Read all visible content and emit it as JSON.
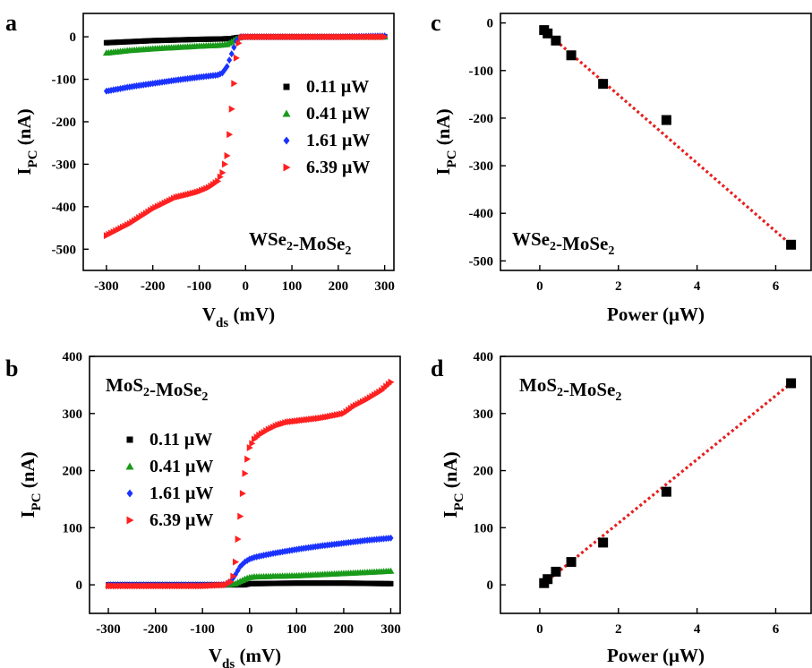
{
  "figure": {
    "colors": {
      "black": "#000000",
      "green": "#1a9a1a",
      "blue": "#1a33ff",
      "red": "#ff2020",
      "fit_line": "#e62020"
    }
  },
  "chart_data": [
    {
      "panel": "a",
      "type": "scatter",
      "annotation": "WSe₂-MoSe₂",
      "xlabel": "V_ds (mV)",
      "ylabel": "I_PC (nA)",
      "xlim": [
        -350,
        320
      ],
      "ylim": [
        -550,
        55
      ],
      "xticks": [
        -300,
        -200,
        -100,
        0,
        100,
        200,
        300
      ],
      "yticks": [
        0,
        -100,
        -200,
        -300,
        -400,
        -500
      ],
      "legend_position": "center-right",
      "series": [
        {
          "name": "0.11 μW",
          "marker": "square",
          "color": "#000000",
          "x": [
            -300,
            -200,
            -100,
            -50,
            -30,
            -20,
            0,
            100,
            200,
            300
          ],
          "y": [
            -14,
            -9,
            -6,
            -5,
            -4,
            -2,
            0,
            0,
            0,
            0
          ]
        },
        {
          "name": "0.41 μW",
          "marker": "triangle-up",
          "color": "#1a9a1a",
          "x": [
            -300,
            -250,
            -200,
            -150,
            -100,
            -60,
            -40,
            -30,
            -20,
            -10,
            0,
            100,
            200,
            300
          ],
          "y": [
            -38,
            -32,
            -28,
            -25,
            -22,
            -20,
            -18,
            -12,
            -5,
            0,
            0,
            0,
            0,
            0
          ]
        },
        {
          "name": "1.61 μW",
          "marker": "diamond",
          "color": "#1a33ff",
          "x": [
            -300,
            -250,
            -200,
            -150,
            -100,
            -60,
            -50,
            -40,
            -30,
            -20,
            -10,
            0,
            100,
            200,
            300
          ],
          "y": [
            -128,
            -118,
            -110,
            -102,
            -95,
            -90,
            -85,
            -70,
            -40,
            -10,
            0,
            0,
            0,
            0,
            2
          ]
        },
        {
          "name": "6.39 μW",
          "marker": "triangle-right",
          "color": "#ff2020",
          "x": [
            -300,
            -250,
            -200,
            -150,
            -120,
            -100,
            -80,
            -60,
            -50,
            -40,
            -35,
            -30,
            -25,
            -20,
            -15,
            -10,
            -5,
            0,
            100,
            200,
            300
          ],
          "y": [
            -468,
            -440,
            -405,
            -378,
            -370,
            -364,
            -355,
            -340,
            -320,
            -280,
            -230,
            -170,
            -110,
            -50,
            -15,
            -3,
            0,
            0,
            0,
            0,
            0
          ]
        }
      ]
    },
    {
      "panel": "b",
      "type": "scatter",
      "annotation": "MoS₂-MoSe₂",
      "xlabel": "V_ds (mV)",
      "ylabel": "I_PC (nA)",
      "xlim": [
        -340,
        320
      ],
      "ylim": [
        -50,
        400
      ],
      "xticks": [
        -300,
        -200,
        -100,
        0,
        100,
        200,
        300
      ],
      "yticks": [
        0,
        100,
        200,
        300,
        400
      ],
      "legend_position": "center-left",
      "series": [
        {
          "name": "0.11 μW",
          "marker": "square",
          "color": "#000000",
          "x": [
            -300,
            -200,
            -100,
            -50,
            -30,
            -20,
            -10,
            0,
            100,
            200,
            300
          ],
          "y": [
            0,
            0,
            0,
            0,
            0,
            0,
            0,
            2,
            3,
            3,
            2
          ]
        },
        {
          "name": "0.41 μW",
          "marker": "triangle-up",
          "color": "#1a9a1a",
          "x": [
            -300,
            -200,
            -100,
            -50,
            -30,
            -20,
            -10,
            0,
            10,
            50,
            100,
            150,
            200,
            250,
            300
          ],
          "y": [
            0,
            0,
            0,
            0,
            2,
            6,
            10,
            13,
            14,
            15,
            16,
            18,
            20,
            22,
            24
          ]
        },
        {
          "name": "1.61 μW",
          "marker": "diamond",
          "color": "#1a33ff",
          "x": [
            -300,
            -200,
            -100,
            -60,
            -50,
            -40,
            -30,
            -20,
            -10,
            0,
            10,
            20,
            50,
            100,
            150,
            200,
            250,
            300
          ],
          "y": [
            0,
            0,
            0,
            0,
            1,
            6,
            18,
            32,
            40,
            45,
            48,
            50,
            55,
            62,
            68,
            73,
            78,
            82
          ]
        },
        {
          "name": "6.39 μW",
          "marker": "triangle-right",
          "color": "#ff2020",
          "x": [
            -300,
            -200,
            -100,
            -50,
            -40,
            -35,
            -30,
            -25,
            -20,
            -15,
            -10,
            -5,
            0,
            10,
            20,
            40,
            60,
            80,
            100,
            120,
            150,
            170,
            200,
            220,
            250,
            280,
            300
          ],
          "y": [
            -2,
            -2,
            -2,
            0,
            5,
            15,
            40,
            80,
            120,
            160,
            195,
            220,
            240,
            255,
            262,
            272,
            280,
            285,
            287,
            289,
            292,
            295,
            300,
            312,
            325,
            340,
            355
          ]
        }
      ]
    },
    {
      "panel": "c",
      "type": "scatter",
      "annotation": "WSe₂-MoSe₂",
      "xlabel": "Power (μW)",
      "ylabel": "I_PC (nA)",
      "xlim": [
        -1,
        6.9
      ],
      "ylim": [
        -520,
        20
      ],
      "xticks": [
        0,
        2,
        4,
        6
      ],
      "yticks": [
        0,
        -100,
        -200,
        -300,
        -400,
        -500
      ],
      "series": [
        {
          "name": "",
          "marker": "square",
          "color": "#000000",
          "x": [
            0.11,
            0.2,
            0.41,
            0.8,
            1.61,
            3.22,
            6.39
          ],
          "y": [
            -15,
            -22,
            -37,
            -68,
            -128,
            -204,
            -466
          ]
        }
      ],
      "fit": {
        "x": [
          0.1,
          6.39
        ],
        "y": [
          -15,
          -466
        ],
        "color": "#e62020",
        "style": "dotted"
      }
    },
    {
      "panel": "d",
      "type": "scatter",
      "annotation": "MoS₂-MoSe₂",
      "xlabel": "Power (μW)",
      "ylabel": "I_PC (nA)",
      "xlim": [
        -1,
        6.9
      ],
      "ylim": [
        -50,
        400
      ],
      "xticks": [
        0,
        2,
        4,
        6
      ],
      "yticks": [
        0,
        100,
        200,
        300,
        400
      ],
      "series": [
        {
          "name": "",
          "marker": "square",
          "color": "#000000",
          "x": [
            0.11,
            0.2,
            0.41,
            0.8,
            1.61,
            3.22,
            6.39
          ],
          "y": [
            3,
            10,
            23,
            40,
            74,
            163,
            353
          ]
        }
      ],
      "fit": {
        "x": [
          0.1,
          6.39
        ],
        "y": [
          2,
          353
        ],
        "color": "#e62020",
        "style": "dotted"
      }
    }
  ]
}
